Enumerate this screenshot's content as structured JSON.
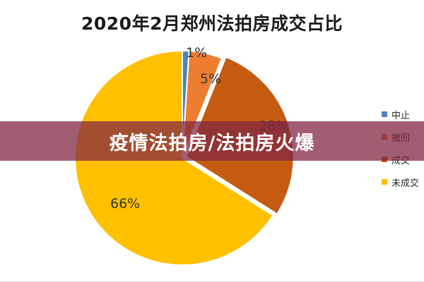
{
  "chart_data": {
    "type": "pie",
    "title": "2020年2月郑州法拍房成交占比",
    "slices": [
      {
        "name": "中止",
        "value": 1,
        "label": "1%",
        "color": "#4f81bd"
      },
      {
        "name": "撤回",
        "value": 5,
        "label": "5%",
        "color": "#ed7d31"
      },
      {
        "name": "成交",
        "value": 28,
        "label": "28%",
        "color": "#c55a11"
      },
      {
        "name": "未成交",
        "value": 66,
        "label": "66%",
        "color": "#ffc000"
      }
    ],
    "legend_placement": "right"
  },
  "overlay": {
    "text": "疫情法拍房/法拍房火爆"
  },
  "colors": {
    "overlay_bg": "#802642",
    "slice_border": "#ffffff"
  }
}
